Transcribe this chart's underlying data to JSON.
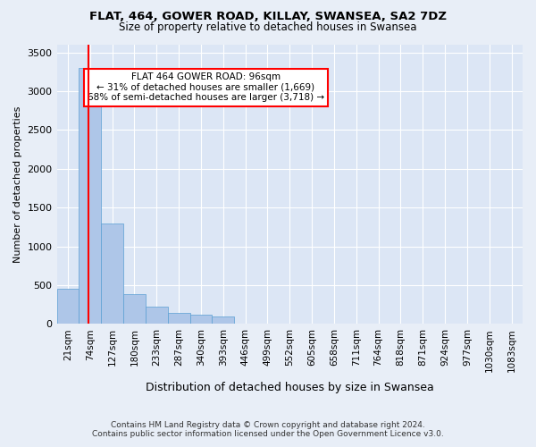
{
  "title1": "FLAT, 464, GOWER ROAD, KILLAY, SWANSEA, SA2 7DZ",
  "title2": "Size of property relative to detached houses in Swansea",
  "xlabel": "Distribution of detached houses by size in Swansea",
  "ylabel": "Number of detached properties",
  "footnote": "Contains HM Land Registry data © Crown copyright and database right 2024.\nContains public sector information licensed under the Open Government Licence v3.0.",
  "bin_labels": [
    "21sqm",
    "74sqm",
    "127sqm",
    "180sqm",
    "233sqm",
    "287sqm",
    "340sqm",
    "393sqm",
    "446sqm",
    "499sqm",
    "552sqm",
    "605sqm",
    "658sqm",
    "711sqm",
    "764sqm",
    "818sqm",
    "871sqm",
    "924sqm",
    "977sqm",
    "1030sqm",
    "1083sqm"
  ],
  "bar_heights": [
    450,
    3300,
    1300,
    390,
    220,
    140,
    120,
    100,
    0,
    0,
    0,
    0,
    0,
    0,
    0,
    0,
    0,
    0,
    0,
    0,
    0
  ],
  "bar_color": "#aec6e8",
  "bar_edge_color": "#5a9fd4",
  "annotation_box_text": "FLAT 464 GOWER ROAD: 96sqm\n← 31% of detached houses are smaller (1,669)\n68% of semi-detached houses are larger (3,718) →",
  "annotation_box_color": "white",
  "annotation_box_edge_color": "red",
  "marker_color": "red",
  "ylim": [
    0,
    3600
  ],
  "yticks": [
    0,
    500,
    1000,
    1500,
    2000,
    2500,
    3000,
    3500
  ],
  "background_color": "#e8eef7",
  "plot_bg_color": "#dce6f5"
}
